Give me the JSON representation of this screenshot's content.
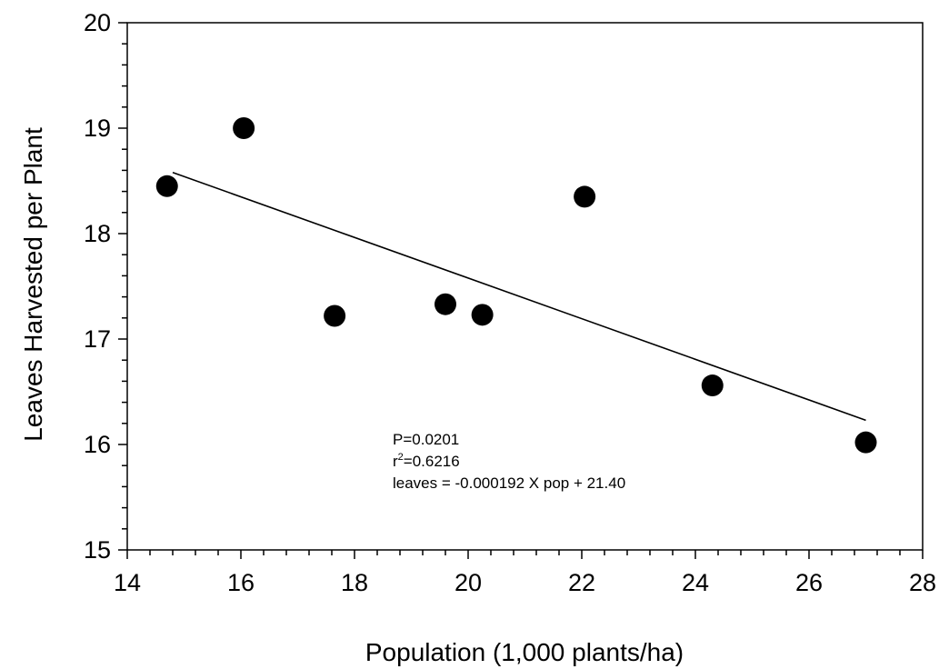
{
  "chart_data": {
    "type": "scatter",
    "title": "",
    "xlabel": "Population (1,000 plants/ha)",
    "ylabel": "Leaves Harvested per Plant",
    "xlim": [
      14,
      28
    ],
    "ylim": [
      15,
      20
    ],
    "x_ticks": [
      "14",
      "16",
      "18",
      "20",
      "22",
      "24",
      "26",
      "28"
    ],
    "y_ticks": [
      "15",
      "16",
      "17",
      "18",
      "19",
      "20"
    ],
    "grid": false,
    "points": [
      {
        "x": 14.7,
        "y": 18.45
      },
      {
        "x": 16.05,
        "y": 19.0
      },
      {
        "x": 17.65,
        "y": 17.22
      },
      {
        "x": 19.6,
        "y": 17.33
      },
      {
        "x": 20.25,
        "y": 17.23
      },
      {
        "x": 22.05,
        "y": 18.35
      },
      {
        "x": 24.3,
        "y": 16.56
      },
      {
        "x": 27.0,
        "y": 16.02
      }
    ],
    "trendline": {
      "x": [
        14.8,
        27.0
      ],
      "y": [
        18.58,
        16.23
      ]
    },
    "annotations": {
      "p_value": "P=0.0201",
      "r2_prefix": "r",
      "r2_sup": "2",
      "r2_value": "=0.6216",
      "equation": "leaves = -0.000192 X pop + 21.40"
    },
    "colors": {
      "points": "#000000",
      "line": "#000000",
      "axis": "#000000"
    }
  }
}
